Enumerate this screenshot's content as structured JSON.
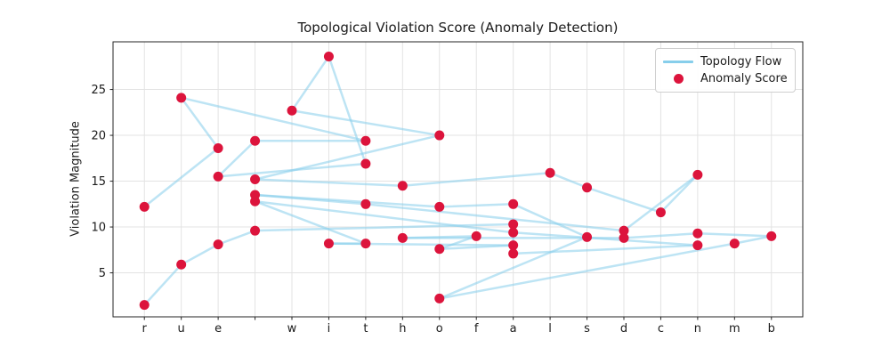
{
  "chart_data": {
    "type": "line+scatter",
    "title": "Topological Violation Score (Anomaly Detection)",
    "xlabel": "",
    "ylabel": "Violation Magnitude",
    "categories": [
      "r",
      "u",
      "e",
      " ",
      "w",
      "i",
      "t",
      "h",
      "o",
      "f",
      "a",
      "l",
      "s",
      "d",
      "c",
      "n",
      "m",
      "b"
    ],
    "yticks": [
      5,
      10,
      15,
      20,
      25
    ],
    "ylim": [
      0.2,
      30.2
    ],
    "xlim": [
      -0.85,
      17.85
    ],
    "grid": true,
    "line_color": "#87CEEB",
    "point_color": "#DC143C",
    "sequence": [
      [
        "r",
        12.2
      ],
      [
        "e",
        18.6
      ],
      [
        "u",
        24.1
      ],
      [
        "t",
        19.4
      ],
      [
        " ",
        19.4
      ],
      [
        "e",
        15.5
      ],
      [
        "t",
        16.9
      ],
      [
        "i",
        28.6
      ],
      [
        "w",
        22.7
      ],
      [
        "o",
        20.0
      ],
      [
        " ",
        15.2
      ],
      [
        "h",
        14.5
      ],
      [
        "l",
        15.9
      ],
      [
        "s",
        14.3
      ],
      [
        "c",
        11.6
      ],
      [
        "n",
        15.7
      ],
      [
        "d",
        9.6
      ],
      [
        "t",
        12.5
      ],
      [
        " ",
        13.5
      ],
      [
        "o",
        12.2
      ],
      [
        "a",
        12.5
      ],
      [
        "s",
        8.9
      ],
      [
        "o",
        2.2
      ],
      [
        "m",
        8.2
      ],
      [
        "b",
        9.0
      ],
      [
        "n",
        9.3
      ],
      [
        "d",
        8.8
      ],
      [
        "h",
        8.8
      ],
      [
        "f",
        9.0
      ],
      [
        "o",
        7.6
      ],
      [
        "a",
        8.0
      ],
      [
        "i",
        8.2
      ],
      [
        "t",
        8.2
      ],
      [
        " ",
        12.8
      ],
      [
        "a",
        9.4
      ],
      [
        "n",
        8.0
      ],
      [
        "a",
        7.1
      ],
      [
        "a",
        10.3
      ],
      [
        " ",
        9.6
      ],
      [
        "e",
        8.1
      ],
      [
        "u",
        5.9
      ],
      [
        "r",
        1.5
      ]
    ],
    "legend": {
      "position": "upper right",
      "entries": [
        {
          "label": "Topology Flow",
          "marker": "line",
          "color": "#87CEEB"
        },
        {
          "label": "Anomaly Score",
          "marker": "dot",
          "color": "#DC143C"
        }
      ]
    }
  }
}
